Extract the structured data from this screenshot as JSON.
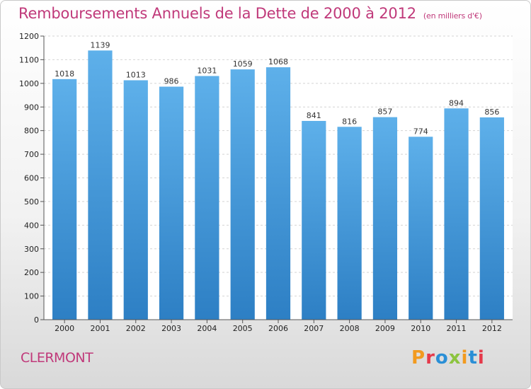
{
  "header": {
    "title": "Remboursements Annuels de la Dette de 2000 à 2012",
    "subtitle": "(en milliers d'€)"
  },
  "footer": {
    "city": "CLERMONT",
    "logo_text": "Proxiti",
    "logo_colors": [
      "#f29a1f",
      "#e53a4b",
      "#2a8fd6",
      "#8cc43f",
      "#f29a1f",
      "#2a8fd6",
      "#e53a4b"
    ]
  },
  "chart_data": {
    "type": "bar",
    "title": "Remboursements Annuels de la Dette de 2000 à 2012",
    "subtitle": "(en milliers d'€)",
    "categories": [
      "2000",
      "2001",
      "2002",
      "2003",
      "2004",
      "2005",
      "2006",
      "2007",
      "2008",
      "2009",
      "2010",
      "2011",
      "2012"
    ],
    "values": [
      1018,
      1139,
      1013,
      986,
      1031,
      1059,
      1068,
      841,
      816,
      857,
      774,
      894,
      856
    ],
    "ylim": [
      0,
      1200
    ],
    "yticks": [
      0,
      100,
      200,
      300,
      400,
      500,
      600,
      700,
      800,
      900,
      1000,
      1100,
      1200
    ],
    "grid": true,
    "bar_color": "#3d8fd1",
    "bar_color_light": "#5aade8"
  }
}
